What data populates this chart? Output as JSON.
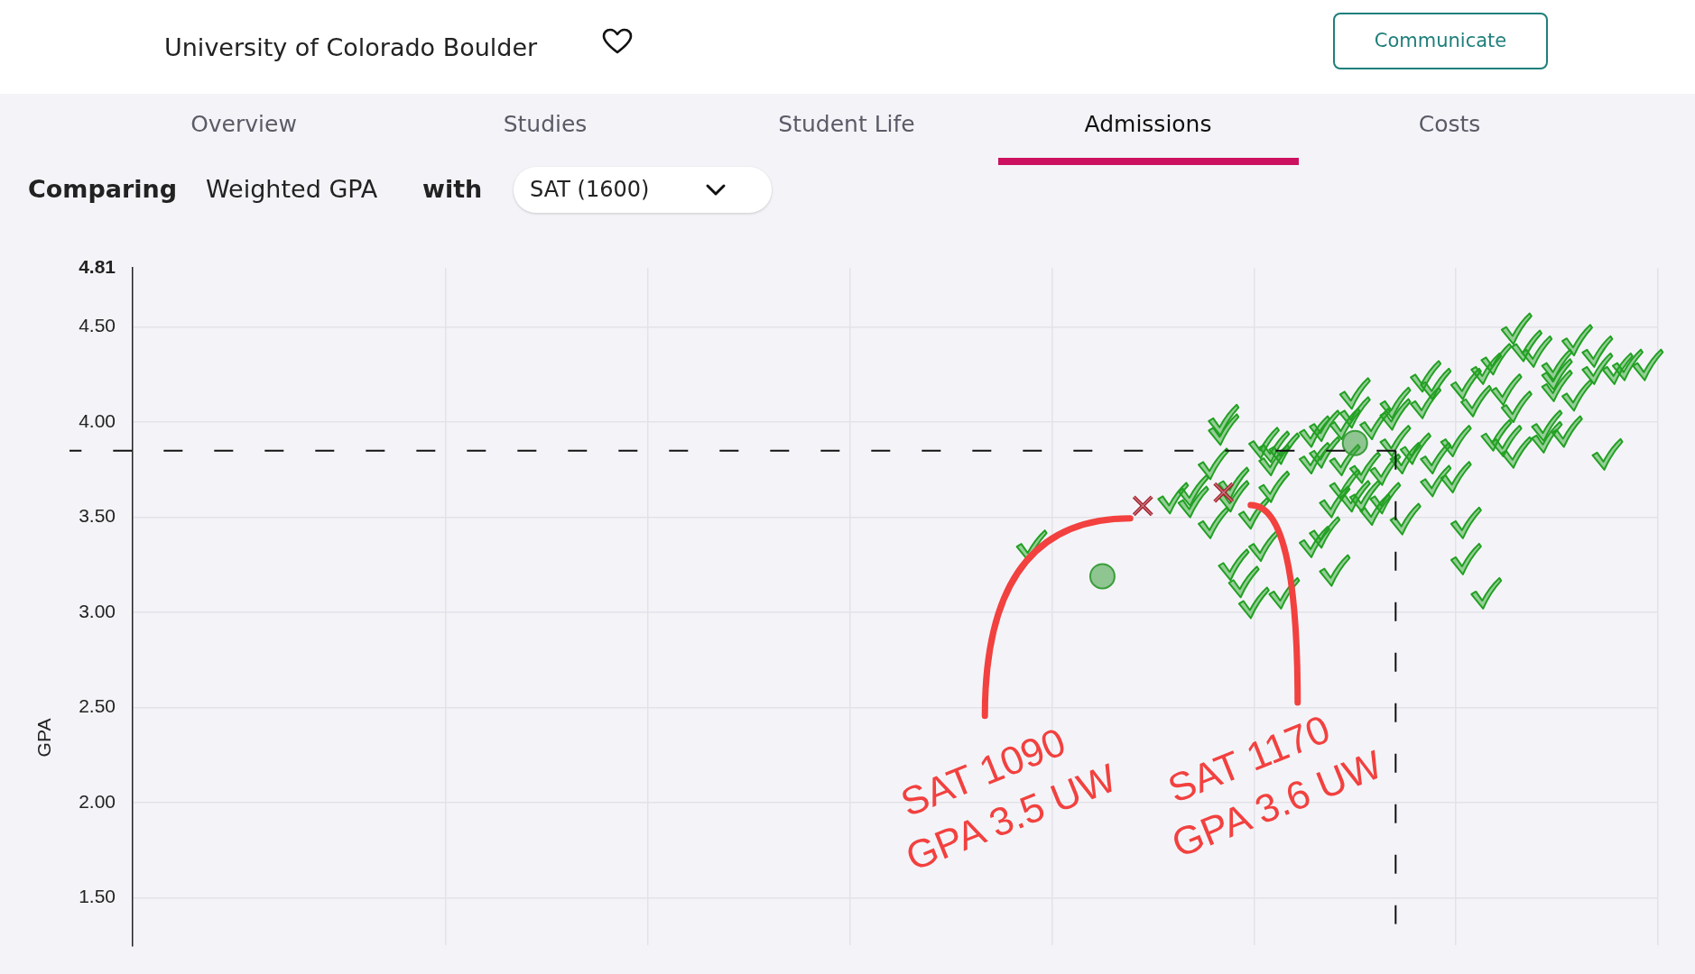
{
  "chart_data": {
    "type": "scatter",
    "title": "University of Colorado Boulder",
    "ylabel": "GPA",
    "categories": [
      null,
      null,
      null,
      null,
      null,
      null,
      null,
      null,
      null,
      null,
      null,
      null,
      null,
      null,
      null,
      null,
      null,
      null,
      null,
      null,
      null,
      null,
      null,
      null,
      null,
      null,
      null,
      null,
      null,
      null,
      null,
      null,
      null,
      null,
      null,
      null,
      null,
      null,
      null,
      null,
      null,
      null,
      null,
      null,
      null,
      null,
      null,
      null,
      null,
      null,
      null,
      null,
      null,
      null,
      null,
      null,
      null,
      null,
      null,
      null,
      null,
      null,
      null,
      null,
      null,
      null,
      null,
      null,
      null,
      null,
      null,
      null,
      null,
      null,
      null,
      null,
      null,
      null,
      null,
      null,
      null,
      null,
      null,
      null,
      null,
      null,
      null,
      null,
      null,
      null,
      null,
      null,
      null,
      null,
      null,
      null,
      null,
      null,
      null,
      null,
      null,
      null,
      null,
      null,
      null,
      null,
      null,
      null,
      null,
      null,
      null,
      null,
      null,
      null,
      null,
      null,
      null,
      null,
      null,
      null,
      null,
      null,
      null,
      null,
      null,
      null,
      null,
      null,
      null,
      null,
      null,
      null,
      null,
      null,
      null,
      null,
      null,
      null,
      null,
      null,
      null,
      null,
      null,
      null,
      null,
      null,
      null,
      null,
      null,
      null,
      null,
      null
    ],
    "ylim": [
      1.25,
      4.81
    ],
    "yticks": [
      {
        "value": 1.5,
        "label": "1.50"
      },
      {
        "value": 2,
        "label": "2.00"
      },
      {
        "value": 2.5,
        "label": "2.50"
      },
      {
        "value": 3,
        "label": "3.00"
      },
      {
        "value": 3.5,
        "label": "3.50"
      },
      {
        "value": 4,
        "label": "4.00"
      },
      {
        "value": 4.5,
        "label": "4.50"
      },
      4.81
    ],
    "tick_labels": "y",
    "grid": true,
    "ref_lines": [
      {
        "axis": "y",
        "value": 3.85,
        "line_style": "dashed",
        "color": "#111111"
      }
    ],
    "series": [
      {
        "color": "#22a022",
        "values": [
          null,
          null,
          null,
          null,
          null,
          null,
          null,
          null,
          null,
          null,
          null,
          null,
          null,
          null,
          null,
          null,
          null,
          null,
          null,
          null,
          null,
          null,
          null,
          null,
          null,
          null,
          null,
          null,
          null,
          null,
          null,
          null,
          null,
          null,
          null,
          null,
          null,
          null,
          null,
          null,
          null,
          null,
          null,
          null,
          null,
          null,
          null,
          null,
          null,
          null,
          null,
          null,
          null,
          null,
          null,
          null,
          null,
          null,
          null,
          null,
          null,
          null,
          null,
          null,
          null,
          null,
          null,
          null,
          null,
          null,
          null,
          null,
          null,
          null,
          null,
          null,
          null,
          null,
          null,
          null,
          null,
          null,
          null,
          null,
          null,
          null,
          null,
          null,
          null,
          3.35,
          null,
          null,
          null,
          null,
          null,
          null,
          null,
          null,
          null,
          null,
          null,
          null,
          null,
          3.6,
          null,
          3.64,
          null,
          3.78,
          4.01,
          3.61,
          3.16,
          3.52,
          3.89,
          3.87,
          3.86,
          null,
          null,
          3.37,
          3.98,
          3.22,
          3.99,
          4.15,
          3.76,
          3.99,
          3.75,
          4.1,
          3.49,
          3.86,
          4.24,
          4.2,
          null,
          3.71,
          3.47,
          4.11,
          3.1,
          4.33,
          4.17,
          4.49,
          4.4,
          4.37,
          3.98,
          4.3,
          3.95,
          4.43,
          null,
          4.37,
          3.83,
          4.28,
          4.3,
          null,
          4.3,
          null
        ]
      },
      {
        "color": "#22a022",
        "values": [
          null,
          null,
          null,
          null,
          null,
          null,
          null,
          null,
          null,
          null,
          null,
          null,
          null,
          null,
          null,
          null,
          null,
          null,
          null,
          null,
          null,
          null,
          null,
          null,
          null,
          null,
          null,
          null,
          null,
          null,
          null,
          null,
          null,
          null,
          null,
          null,
          null,
          null,
          null,
          null,
          null,
          null,
          null,
          null,
          null,
          null,
          null,
          null,
          null,
          null,
          null,
          null,
          null,
          null,
          null,
          null,
          null,
          null,
          null,
          null,
          null,
          null,
          null,
          null,
          null,
          null,
          null,
          null,
          null,
          null,
          null,
          null,
          null,
          null,
          null,
          null,
          null,
          null,
          null,
          null,
          null,
          null,
          null,
          null,
          null,
          null,
          null,
          null,
          null,
          null,
          null,
          null,
          null,
          null,
          null,
          null,
          null,
          null,
          null,
          null,
          null,
          null,
          null,
          null,
          null,
          3.58,
          null,
          3.47,
          3.96,
          3.68,
          null,
          3.05,
          3.35,
          3.8,
          3.1,
          null,
          null,
          3.95,
          3.42,
          3.58,
          3.8,
          3.61,
          3.61,
          3.54,
          3.6,
          4.04,
          3.81,
          null,
          4.1,
          3.69,
          null,
          3.9,
          3.28,
          null,
          4.28,
          3.93,
          3.9,
          4.08,
          null,
          null,
          3.92,
          4.25,
          null,
          4.14,
          null,
          4.28,
          null,
          null,
          null,
          null,
          null,
          null
        ]
      },
      {
        "color": "#22a022",
        "values": [
          null,
          null,
          null,
          null,
          null,
          null,
          null,
          null,
          null,
          null,
          null,
          null,
          null,
          null,
          null,
          null,
          null,
          null,
          null,
          null,
          null,
          null,
          null,
          null,
          null,
          null,
          null,
          null,
          null,
          null,
          null,
          null,
          null,
          null,
          null,
          null,
          null,
          null,
          null,
          null,
          null,
          null,
          null,
          null,
          null,
          null,
          null,
          null,
          null,
          null,
          null,
          null,
          null,
          null,
          null,
          null,
          null,
          null,
          null,
          null,
          null,
          null,
          null,
          null,
          null,
          null,
          null,
          null,
          null,
          null,
          null,
          null,
          null,
          null,
          null,
          null,
          null,
          null,
          null,
          null,
          null,
          null,
          null,
          null,
          null,
          null,
          null,
          null,
          null,
          null,
          null,
          null,
          null,
          null,
          null,
          null,
          null,
          null,
          null,
          null,
          null,
          null,
          null,
          null,
          null,
          null,
          null,
          null,
          null,
          3.25,
          null,
          null,
          null,
          3.66,
          null,
          null,
          null,
          3.81,
          3.84,
          null,
          3.67,
          4.05,
          null,
          null,
          null,
          3.9,
          null,
          null,
          null,
          3.81,
          null,
          null,
          4.2,
          null,
          null,
          null,
          null,
          3.84,
          null,
          null,
          null,
          4.19,
          null,
          null,
          null,
          null,
          null,
          null,
          null,
          null,
          null,
          null
        ]
      },
      {
        "color": "#3a9e3a",
        "marker": "circle",
        "values": [
          null,
          null,
          null,
          null,
          null,
          null,
          null,
          null,
          null,
          null,
          null,
          null,
          null,
          null,
          null,
          null,
          null,
          null,
          null,
          null,
          null,
          null,
          null,
          null,
          null,
          null,
          null,
          null,
          null,
          null,
          null,
          null,
          null,
          null,
          null,
          null,
          null,
          null,
          null,
          null,
          null,
          null,
          null,
          null,
          null,
          null,
          null,
          null,
          null,
          null,
          null,
          null,
          null,
          null,
          null,
          null,
          null,
          null,
          null,
          null,
          null,
          null,
          null,
          null,
          null,
          null,
          null,
          null,
          null,
          null,
          null,
          null,
          null,
          null,
          null,
          null,
          null,
          null,
          null,
          null,
          null,
          null,
          null,
          null,
          null,
          null,
          null,
          null,
          null,
          null,
          null,
          null,
          null,
          null,
          null,
          null,
          3.19,
          null,
          null,
          null,
          null,
          null,
          null,
          null,
          null,
          null,
          null,
          null,
          null,
          null,
          null,
          null,
          null,
          null,
          null,
          null,
          null,
          null,
          null,
          null,
          null,
          3.89,
          null,
          null,
          null,
          null,
          null,
          null,
          null,
          null,
          null,
          null,
          null,
          null,
          null,
          null,
          null,
          null,
          null,
          null,
          null,
          null,
          null,
          null,
          null,
          null,
          null,
          null,
          null,
          null,
          null,
          null
        ]
      },
      {
        "color": "#a31d2a",
        "marker": "cross",
        "values": [
          null,
          null,
          null,
          null,
          null,
          null,
          null,
          null,
          null,
          null,
          null,
          null,
          null,
          null,
          null,
          null,
          null,
          null,
          null,
          null,
          null,
          null,
          null,
          null,
          null,
          null,
          null,
          null,
          null,
          null,
          null,
          null,
          null,
          null,
          null,
          null,
          null,
          null,
          null,
          null,
          null,
          null,
          null,
          null,
          null,
          null,
          null,
          null,
          null,
          null,
          null,
          null,
          null,
          null,
          null,
          null,
          null,
          null,
          null,
          null,
          null,
          null,
          null,
          null,
          null,
          null,
          null,
          null,
          null,
          null,
          null,
          null,
          null,
          null,
          null,
          null,
          null,
          null,
          null,
          null,
          null,
          null,
          null,
          null,
          null,
          null,
          null,
          null,
          null,
          null,
          null,
          null,
          null,
          null,
          null,
          null,
          null,
          null,
          null,
          null,
          3.56,
          null,
          null,
          null,
          null,
          null,
          null,
          null,
          3.63,
          null,
          null,
          null,
          null,
          null,
          null,
          null,
          null,
          null,
          null,
          null,
          null,
          null,
          null,
          null,
          null,
          null,
          null,
          null,
          null,
          null,
          null,
          null,
          null,
          null,
          null,
          null,
          null,
          null,
          null,
          null,
          null,
          null,
          null,
          null,
          null,
          null,
          null,
          null,
          null,
          null,
          null,
          null
        ]
      }
    ],
    "annotations": [
      "Communicate",
      "Overview",
      "Studies",
      "Student Life",
      "Admissions",
      "Costs",
      "Comparing",
      "Weighted GPA",
      "with",
      "SAT (1600)",
      "SAT 1090 GPA 3.5 UW",
      "SAT 1170 GPA 3.6 UW"
    ]
  }
}
